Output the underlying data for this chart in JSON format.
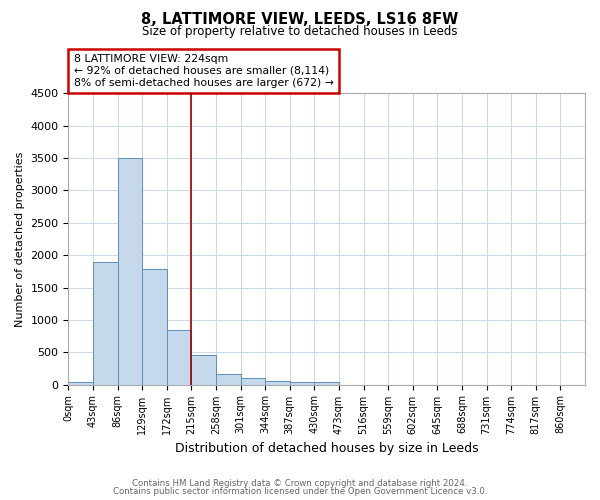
{
  "title": "8, LATTIMORE VIEW, LEEDS, LS16 8FW",
  "subtitle": "Size of property relative to detached houses in Leeds",
  "xlabel": "Distribution of detached houses by size in Leeds",
  "ylabel": "Number of detached properties",
  "bar_color": "#c6d9ec",
  "bar_edge_color": "#5b8db8",
  "vline_color": "#990000",
  "vline_x": 215,
  "categories": [
    "0sqm",
    "43sqm",
    "86sqm",
    "129sqm",
    "172sqm",
    "215sqm",
    "258sqm",
    "301sqm",
    "344sqm",
    "387sqm",
    "430sqm",
    "473sqm",
    "516sqm",
    "559sqm",
    "602sqm",
    "645sqm",
    "688sqm",
    "731sqm",
    "774sqm",
    "817sqm",
    "860sqm"
  ],
  "bin_edges": [
    0,
    43,
    86,
    129,
    172,
    215,
    258,
    301,
    344,
    387,
    430,
    473,
    516,
    559,
    602,
    645,
    688,
    731,
    774,
    817,
    860
  ],
  "values": [
    40,
    1900,
    3500,
    1780,
    850,
    460,
    160,
    100,
    60,
    45,
    35,
    0,
    0,
    0,
    0,
    0,
    0,
    0,
    0,
    0
  ],
  "ylim": [
    0,
    4500
  ],
  "yticks": [
    0,
    500,
    1000,
    1500,
    2000,
    2500,
    3000,
    3500,
    4000,
    4500
  ],
  "annotation_lines": [
    "8 LATTIMORE VIEW: 224sqm",
    "← 92% of detached houses are smaller (8,114)",
    "8% of semi-detached houses are larger (672) →"
  ],
  "footnote1": "Contains HM Land Registry data © Crown copyright and database right 2024.",
  "footnote2": "Contains public sector information licensed under the Open Government Licence v3.0.",
  "background_color": "#ffffff",
  "grid_color": "#c8d8ea"
}
